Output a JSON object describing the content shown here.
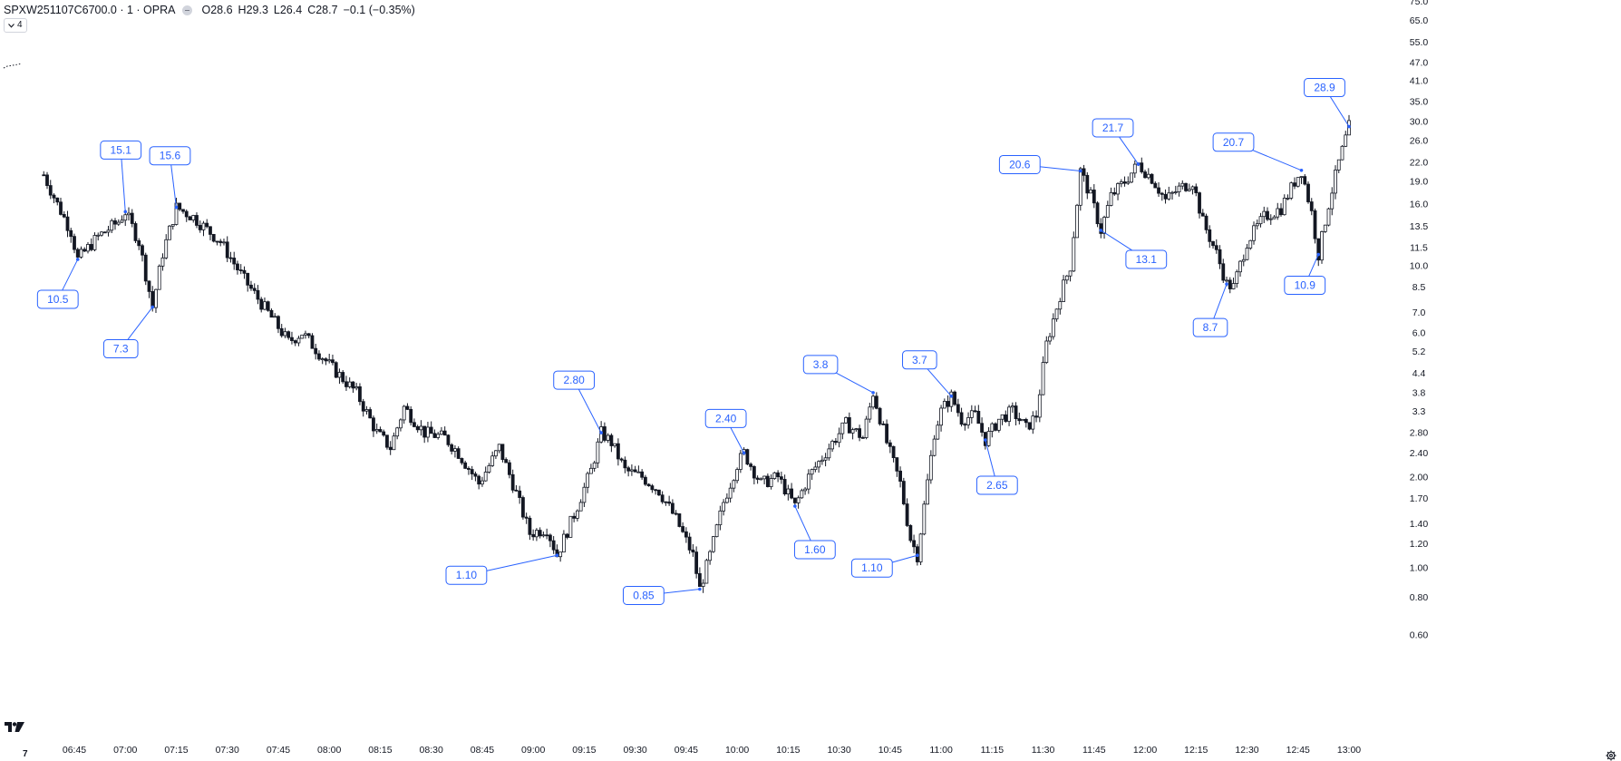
{
  "header": {
    "symbol": "SPXW251107C6700.0 · 1 · OPRA",
    "open_label": "O",
    "open": "28.6",
    "high_label": "H",
    "high": "29.3",
    "low_label": "L",
    "low": "26.4",
    "close_label": "C",
    "close": "28.7",
    "change": "−0.1 (−0.35%)",
    "indicator_count": "4"
  },
  "corner_label": "7",
  "colors": {
    "candle": "#131722",
    "annotation": "#2962ff",
    "axis_text": "#131722"
  },
  "icons": {
    "logo": "tradingview-logo",
    "settings": "gear-icon",
    "collapse": "chevron-down-icon"
  },
  "chart_data": {
    "type": "candlestick",
    "interval": "1",
    "y_scale": "log",
    "y_tick_labels": [
      "0.60",
      "0.80",
      "1.00",
      "1.20",
      "1.40",
      "1.70",
      "2.00",
      "2.40",
      "2.80",
      "3.3",
      "3.8",
      "4.4",
      "5.2",
      "6.0",
      "7.0",
      "8.5",
      "10.0",
      "11.5",
      "13.5",
      "16.0",
      "19.0",
      "22.0",
      "26.0",
      "30.0",
      "35.0",
      "41.0",
      "47.0",
      "55.0",
      "65.0",
      "75.0"
    ],
    "x_tick_labels": [
      "06:45",
      "07:00",
      "07:15",
      "07:30",
      "07:45",
      "08:00",
      "08:15",
      "08:30",
      "08:45",
      "09:00",
      "09:15",
      "09:30",
      "09:45",
      "10:00",
      "10:15",
      "10:30",
      "10:45",
      "11:00",
      "11:15",
      "11:30",
      "11:45",
      "12:00",
      "12:15",
      "12:30",
      "12:45",
      "13:00"
    ],
    "price_path": [
      [
        "06:36",
        20
      ],
      [
        "06:40",
        16
      ],
      [
        "06:44",
        13
      ],
      [
        "06:46",
        10.5
      ],
      [
        "06:52",
        12.5
      ],
      [
        "06:58",
        14
      ],
      [
        "07:00",
        15.1
      ],
      [
        "07:04",
        12
      ],
      [
        "07:08",
        7.3
      ],
      [
        "07:11",
        11
      ],
      [
        "07:15",
        15.6
      ],
      [
        "07:20",
        14.5
      ],
      [
        "07:28",
        12
      ],
      [
        "07:35",
        9
      ],
      [
        "07:44",
        6.5
      ],
      [
        "07:48",
        5.6
      ],
      [
        "07:52",
        6
      ],
      [
        "08:00",
        4.7
      ],
      [
        "08:08",
        3.8
      ],
      [
        "08:14",
        2.8
      ],
      [
        "08:18",
        2.5
      ],
      [
        "08:22",
        3.4
      ],
      [
        "08:28",
        2.8
      ],
      [
        "08:34",
        2.7
      ],
      [
        "08:38",
        2.4
      ],
      [
        "08:44",
        1.9
      ],
      [
        "08:50",
        2.5
      ],
      [
        "08:54",
        1.9
      ],
      [
        "08:59",
        1.3
      ],
      [
        "09:04",
        1.35
      ],
      [
        "09:07",
        1.1
      ],
      [
        "09:12",
        1.5
      ],
      [
        "09:17",
        2.1
      ],
      [
        "09:20",
        2.8
      ],
      [
        "09:23",
        2.6
      ],
      [
        "09:27",
        2.1
      ],
      [
        "09:32",
        2.0
      ],
      [
        "09:37",
        1.8
      ],
      [
        "09:42",
        1.45
      ],
      [
        "09:47",
        1.1
      ],
      [
        "09:49",
        0.85
      ],
      [
        "09:52",
        1.1
      ],
      [
        "09:56",
        1.65
      ],
      [
        "10:00",
        2.2
      ],
      [
        "10:02",
        2.4
      ],
      [
        "10:07",
        1.9
      ],
      [
        "10:12",
        2.0
      ],
      [
        "10:17",
        1.6
      ],
      [
        "10:21",
        2.0
      ],
      [
        "10:27",
        2.5
      ],
      [
        "10:32",
        3.0
      ],
      [
        "10:37",
        2.7
      ],
      [
        "10:40",
        3.8
      ],
      [
        "10:44",
        2.6
      ],
      [
        "10:48",
        1.9
      ],
      [
        "10:51",
        1.25
      ],
      [
        "10:53",
        1.1
      ],
      [
        "10:55",
        1.6
      ],
      [
        "10:58",
        2.8
      ],
      [
        "11:00",
        3.3
      ],
      [
        "11:03",
        3.7
      ],
      [
        "11:06",
        3.1
      ],
      [
        "11:10",
        3.2
      ],
      [
        "11:13",
        2.65
      ],
      [
        "11:17",
        3.1
      ],
      [
        "11:21",
        3.3
      ],
      [
        "11:25",
        2.9
      ],
      [
        "11:28",
        3.2
      ],
      [
        "11:31",
        5.5
      ],
      [
        "11:35",
        8
      ],
      [
        "11:38",
        10
      ],
      [
        "11:41",
        20.6
      ],
      [
        "11:44",
        17
      ],
      [
        "11:47",
        13.1
      ],
      [
        "11:50",
        17
      ],
      [
        "11:54",
        19
      ],
      [
        "11:58",
        21.7
      ],
      [
        "12:02",
        19.5
      ],
      [
        "12:06",
        16.5
      ],
      [
        "12:10",
        18
      ],
      [
        "12:14",
        19
      ],
      [
        "12:17",
        14
      ],
      [
        "12:21",
        11
      ],
      [
        "12:24",
        8.7
      ],
      [
        "12:26",
        8.5
      ],
      [
        "12:30",
        12
      ],
      [
        "12:35",
        14.5
      ],
      [
        "12:40",
        15.5
      ],
      [
        "12:44",
        19
      ],
      [
        "12:46",
        20.7
      ],
      [
        "12:49",
        15
      ],
      [
        "12:51",
        10.9
      ],
      [
        "12:54",
        16
      ],
      [
        "12:57",
        22
      ],
      [
        "13:00",
        28.9
      ]
    ],
    "annotations": [
      {
        "label": "15.1",
        "t": "07:00",
        "y": 15.1
      },
      {
        "label": "15.6",
        "t": "07:15",
        "y": 15.6
      },
      {
        "label": "10.5",
        "t": "06:46",
        "y": 10.5
      },
      {
        "label": "7.3",
        "t": "07:08",
        "y": 7.3
      },
      {
        "label": "2.80",
        "t": "09:20",
        "y": 2.8
      },
      {
        "label": "1.10",
        "t": "09:07",
        "y": 1.1
      },
      {
        "label": "2.40",
        "t": "10:02",
        "y": 2.4
      },
      {
        "label": "0.85",
        "t": "09:49",
        "y": 0.85
      },
      {
        "label": "3.8",
        "t": "10:40",
        "y": 3.8
      },
      {
        "label": "1.60",
        "t": "10:17",
        "y": 1.6
      },
      {
        "label": "3.7",
        "t": "11:03",
        "y": 3.7
      },
      {
        "label": "1.10",
        "t": "10:53",
        "y": 1.1
      },
      {
        "label": "2.65",
        "t": "11:13",
        "y": 2.65
      },
      {
        "label": "20.6",
        "t": "11:41",
        "y": 20.6
      },
      {
        "label": "21.7",
        "t": "11:58",
        "y": 21.7
      },
      {
        "label": "13.1",
        "t": "11:47",
        "y": 13.1
      },
      {
        "label": "20.7",
        "t": "12:46",
        "y": 20.7
      },
      {
        "label": "8.7",
        "t": "12:24",
        "y": 8.7
      },
      {
        "label": "28.9",
        "t": "13:00",
        "y": 28.9
      },
      {
        "label": "10.9",
        "t": "12:51",
        "y": 10.9
      }
    ]
  }
}
